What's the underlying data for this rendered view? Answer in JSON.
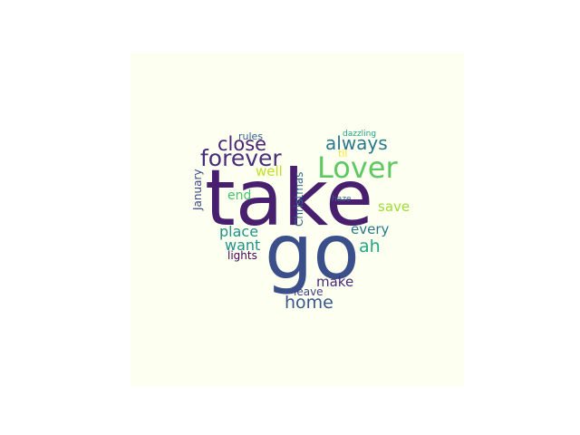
{
  "word_cloud": {
    "background_color": "#fdfff0",
    "words": [
      {
        "key": "take",
        "text": "take",
        "color": "#481f6e"
      },
      {
        "key": "go",
        "text": "go",
        "color": "#3b4f8a"
      },
      {
        "key": "lover",
        "text": "Lover",
        "color": "#5ec962"
      },
      {
        "key": "forever",
        "text": "forever",
        "color": "#472d7b"
      },
      {
        "key": "close",
        "text": "close",
        "color": "#482576"
      },
      {
        "key": "always",
        "text": "always",
        "color": "#2a788e"
      },
      {
        "key": "home",
        "text": "home",
        "color": "#39568c"
      },
      {
        "key": "ah",
        "text": "ah",
        "color": "#22a884"
      },
      {
        "key": "place",
        "text": "place",
        "color": "#21918c"
      },
      {
        "key": "want",
        "text": "want",
        "color": "#21918c"
      },
      {
        "key": "every",
        "text": "every",
        "color": "#2a788e"
      },
      {
        "key": "make",
        "text": "make",
        "color": "#472d7b"
      },
      {
        "key": "save",
        "text": "save",
        "color": "#a2da37"
      },
      {
        "key": "well",
        "text": "well",
        "color": "#c2df23"
      },
      {
        "key": "end",
        "text": "end",
        "color": "#4ac16d"
      },
      {
        "key": "lights",
        "text": "lights",
        "color": "#440154"
      },
      {
        "key": "leave",
        "text": "leave",
        "color": "#414487"
      },
      {
        "key": "rules",
        "text": "rules",
        "color": "#355f8d"
      },
      {
        "key": "til",
        "text": "til",
        "color": "#fde725"
      },
      {
        "key": "haze",
        "text": "haze",
        "color": "#355f8d"
      },
      {
        "key": "dazzling",
        "text": "dazzling",
        "color": "#1fa187"
      },
      {
        "key": "january",
        "text": "January",
        "color": "#3e4989"
      },
      {
        "key": "christmas",
        "text": "Christmas",
        "color": "#31688e"
      }
    ]
  }
}
